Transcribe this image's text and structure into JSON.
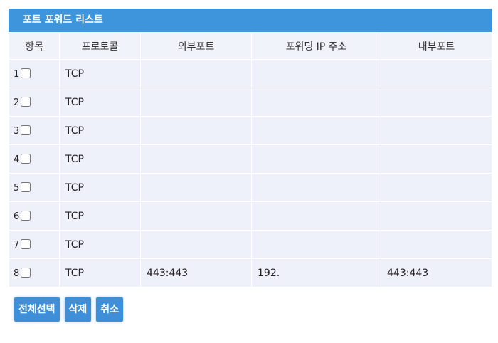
{
  "title": "포트 포워드 리스트",
  "headers": [
    "항목",
    "프로토콜",
    "외부포트",
    "포워딩 IP 주소",
    "내부포트"
  ],
  "rows": [
    {
      "no": "1",
      "protocol": "TCP",
      "external": "",
      "ip": "",
      "internal": ""
    },
    {
      "no": "2",
      "protocol": "TCP",
      "external": "",
      "ip": "",
      "internal": ""
    },
    {
      "no": "3",
      "protocol": "TCP",
      "external": "",
      "ip": "",
      "internal": ""
    },
    {
      "no": "4",
      "protocol": "TCP",
      "external": "",
      "ip": "",
      "internal": ""
    },
    {
      "no": "5",
      "protocol": "TCP",
      "external": "",
      "ip": "",
      "internal": ""
    },
    {
      "no": "6",
      "protocol": "TCP",
      "external": "",
      "ip": "",
      "internal": ""
    },
    {
      "no": "7",
      "protocol": "TCP",
      "external": "",
      "ip": "",
      "internal": ""
    },
    {
      "no": "8",
      "protocol": "TCP",
      "external": "443:443",
      "ip": "192.",
      "internal": "443:443"
    }
  ],
  "buttons": {
    "select_all": "전체선택",
    "delete": "삭제",
    "cancel": "취소"
  },
  "colors": {
    "title_bar": "#3e95dc",
    "row_bg": "#eef0fa"
  }
}
